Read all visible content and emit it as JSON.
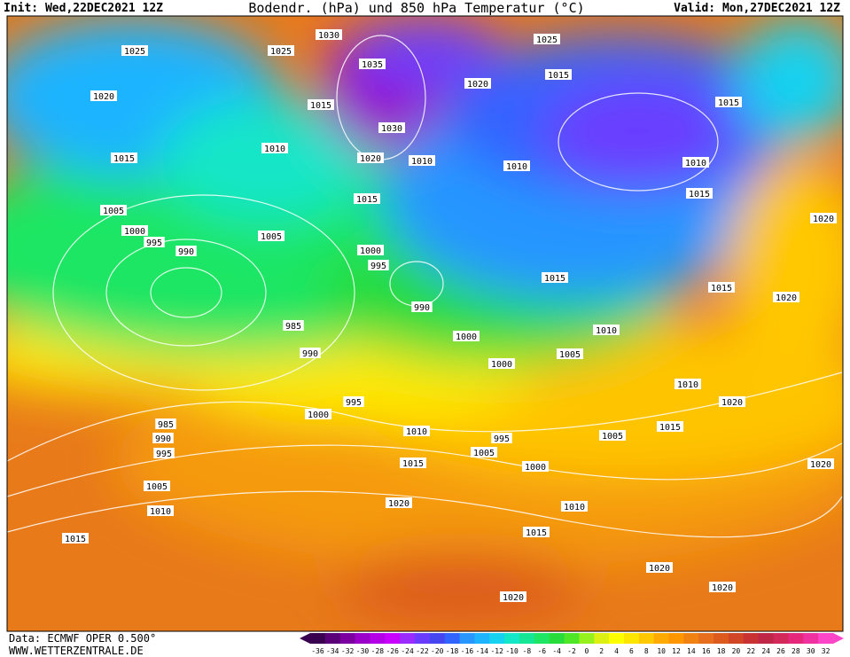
{
  "header": {
    "init": "Init: Wed,22DEC2021 12Z",
    "title": "Bodendr. (hPa) und 850 hPa Temperatur (°C)",
    "valid": "Valid: Mon,27DEC2021 12Z"
  },
  "footer": {
    "source": "Data: ECMWF OPER 0.500°",
    "site": "WWW.WETTERZENTRALE.DE"
  },
  "color_scale": {
    "labels": [
      "-36",
      "-34",
      "-32",
      "-30",
      "-28",
      "-26",
      "-24",
      "-22",
      "-20",
      "-18",
      "-16",
      "-14",
      "-12",
      "-10",
      "-8",
      "-6",
      "-4",
      "-2",
      "0",
      "2",
      "4",
      "6",
      "8",
      "10",
      "12",
      "14",
      "16",
      "18",
      "20",
      "22",
      "24",
      "26",
      "28",
      "30",
      "32"
    ],
    "colors": [
      "#3a0050",
      "#5a0078",
      "#7a00a0",
      "#9a00c8",
      "#b400e6",
      "#c800ff",
      "#9a2cff",
      "#6a3cff",
      "#4646f0",
      "#3264ff",
      "#2896ff",
      "#1eb4ff",
      "#14d2f0",
      "#14e6c8",
      "#14e696",
      "#1ee664",
      "#28dc3c",
      "#50e628",
      "#96f01e",
      "#dcf014",
      "#ffff00",
      "#ffe600",
      "#ffc800",
      "#ffaa00",
      "#ff9600",
      "#f08214",
      "#e66e1e",
      "#dc5a1e",
      "#d24628",
      "#c83232",
      "#be2846",
      "#d2285a",
      "#e6287d",
      "#f032a0",
      "#ff46c8"
    ]
  },
  "isobar_labels": [
    "1025",
    "1025",
    "1030",
    "1035",
    "1025",
    "1020",
    "1015",
    "1020",
    "1015",
    "1015",
    "1030",
    "1010",
    "1020",
    "1015",
    "1010",
    "1010",
    "1010",
    "1015",
    "1015",
    "1005",
    "1000",
    "995",
    "990",
    "1005",
    "1000",
    "995",
    "1020",
    "1015",
    "1015",
    "1020",
    "990",
    "985",
    "1000",
    "1010",
    "990",
    "1005",
    "1000",
    "1010",
    "995",
    "1020",
    "1000",
    "985",
    "990",
    "1010",
    "1015",
    "995",
    "1005",
    "995",
    "1005",
    "1015",
    "1000",
    "1020",
    "1005",
    "1020",
    "1010",
    "1010",
    "1015",
    "1015",
    "1020",
    "1020",
    "1020"
  ]
}
